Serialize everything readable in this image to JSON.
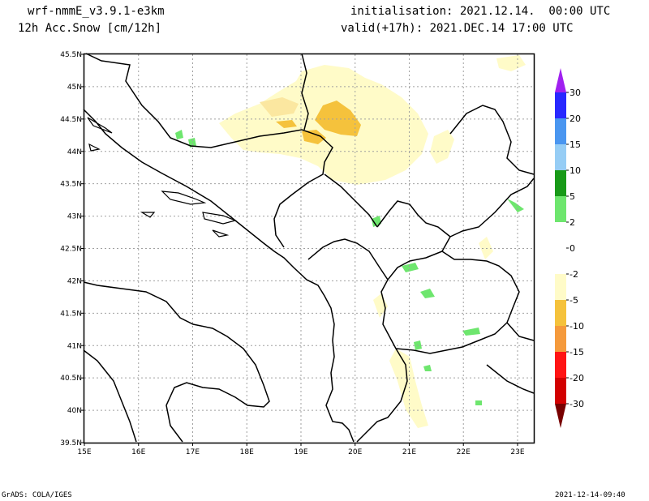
{
  "header": {
    "model": "wrf-nmmE_v3.9.1-e3km",
    "variable": "12h Acc.Snow [cm/12h]",
    "init": "initialisation: 2021.12.14.  00:00 UTC",
    "valid": "valid(+17h): 2021.DEC.14 17:00 UTC"
  },
  "footer": {
    "credit": "GrADS: COLA/IGES",
    "timestamp": "2021-12-14-09:40"
  },
  "map": {
    "lon_range": [
      15,
      23.3
    ],
    "lat_range": [
      39.5,
      45.5
    ],
    "lon_ticks": [
      {
        "v": 15,
        "label": "15E"
      },
      {
        "v": 16,
        "label": "16E"
      },
      {
        "v": 17,
        "label": "17E"
      },
      {
        "v": 18,
        "label": "18E"
      },
      {
        "v": 19,
        "label": "19E"
      },
      {
        "v": 20,
        "label": "20E"
      },
      {
        "v": 21,
        "label": "21E"
      },
      {
        "v": 22,
        "label": "22E"
      },
      {
        "v": 23,
        "label": "23E"
      }
    ],
    "lat_ticks": [
      {
        "v": 39.5,
        "label": "39.5N"
      },
      {
        "v": 40,
        "label": "40N"
      },
      {
        "v": 40.5,
        "label": "40.5N"
      },
      {
        "v": 41,
        "label": "41N"
      },
      {
        "v": 41.5,
        "label": "41.5N"
      },
      {
        "v": 42,
        "label": "42N"
      },
      {
        "v": 42.5,
        "label": "42.5N"
      },
      {
        "v": 43,
        "label": "43N"
      },
      {
        "v": 43.5,
        "label": "43.5N"
      },
      {
        "v": 44,
        "label": "44N"
      },
      {
        "v": 44.5,
        "label": "44.5N"
      },
      {
        "v": 45,
        "label": "45N"
      },
      {
        "v": 45.5,
        "label": "45.5N"
      }
    ],
    "grid": true
  },
  "colorbar": {
    "levels": [
      {
        "label": "30",
        "color": "#2828ff"
      },
      {
        "label": "20",
        "color": "#4a96f0"
      },
      {
        "label": "15",
        "color": "#96cdf5"
      },
      {
        "label": "10",
        "color": "#189a18"
      },
      {
        "label": "5",
        "color": "#6ee66e"
      },
      {
        "label": "2",
        "color": "#ffffff"
      },
      {
        "label": "0",
        "color": "#ffffff"
      },
      {
        "label": "-2",
        "color": "#fffbc8"
      },
      {
        "label": "-5",
        "color": "#f5c23c"
      },
      {
        "label": "-10",
        "color": "#f59a3c"
      },
      {
        "label": "-15",
        "color": "#ff1414"
      },
      {
        "label": "-20",
        "color": "#d20000"
      },
      {
        "label": "-30",
        "color": "#a00000"
      }
    ],
    "top_arrow_color": "#a020f0",
    "bottom_arrow_color": "#780000"
  }
}
